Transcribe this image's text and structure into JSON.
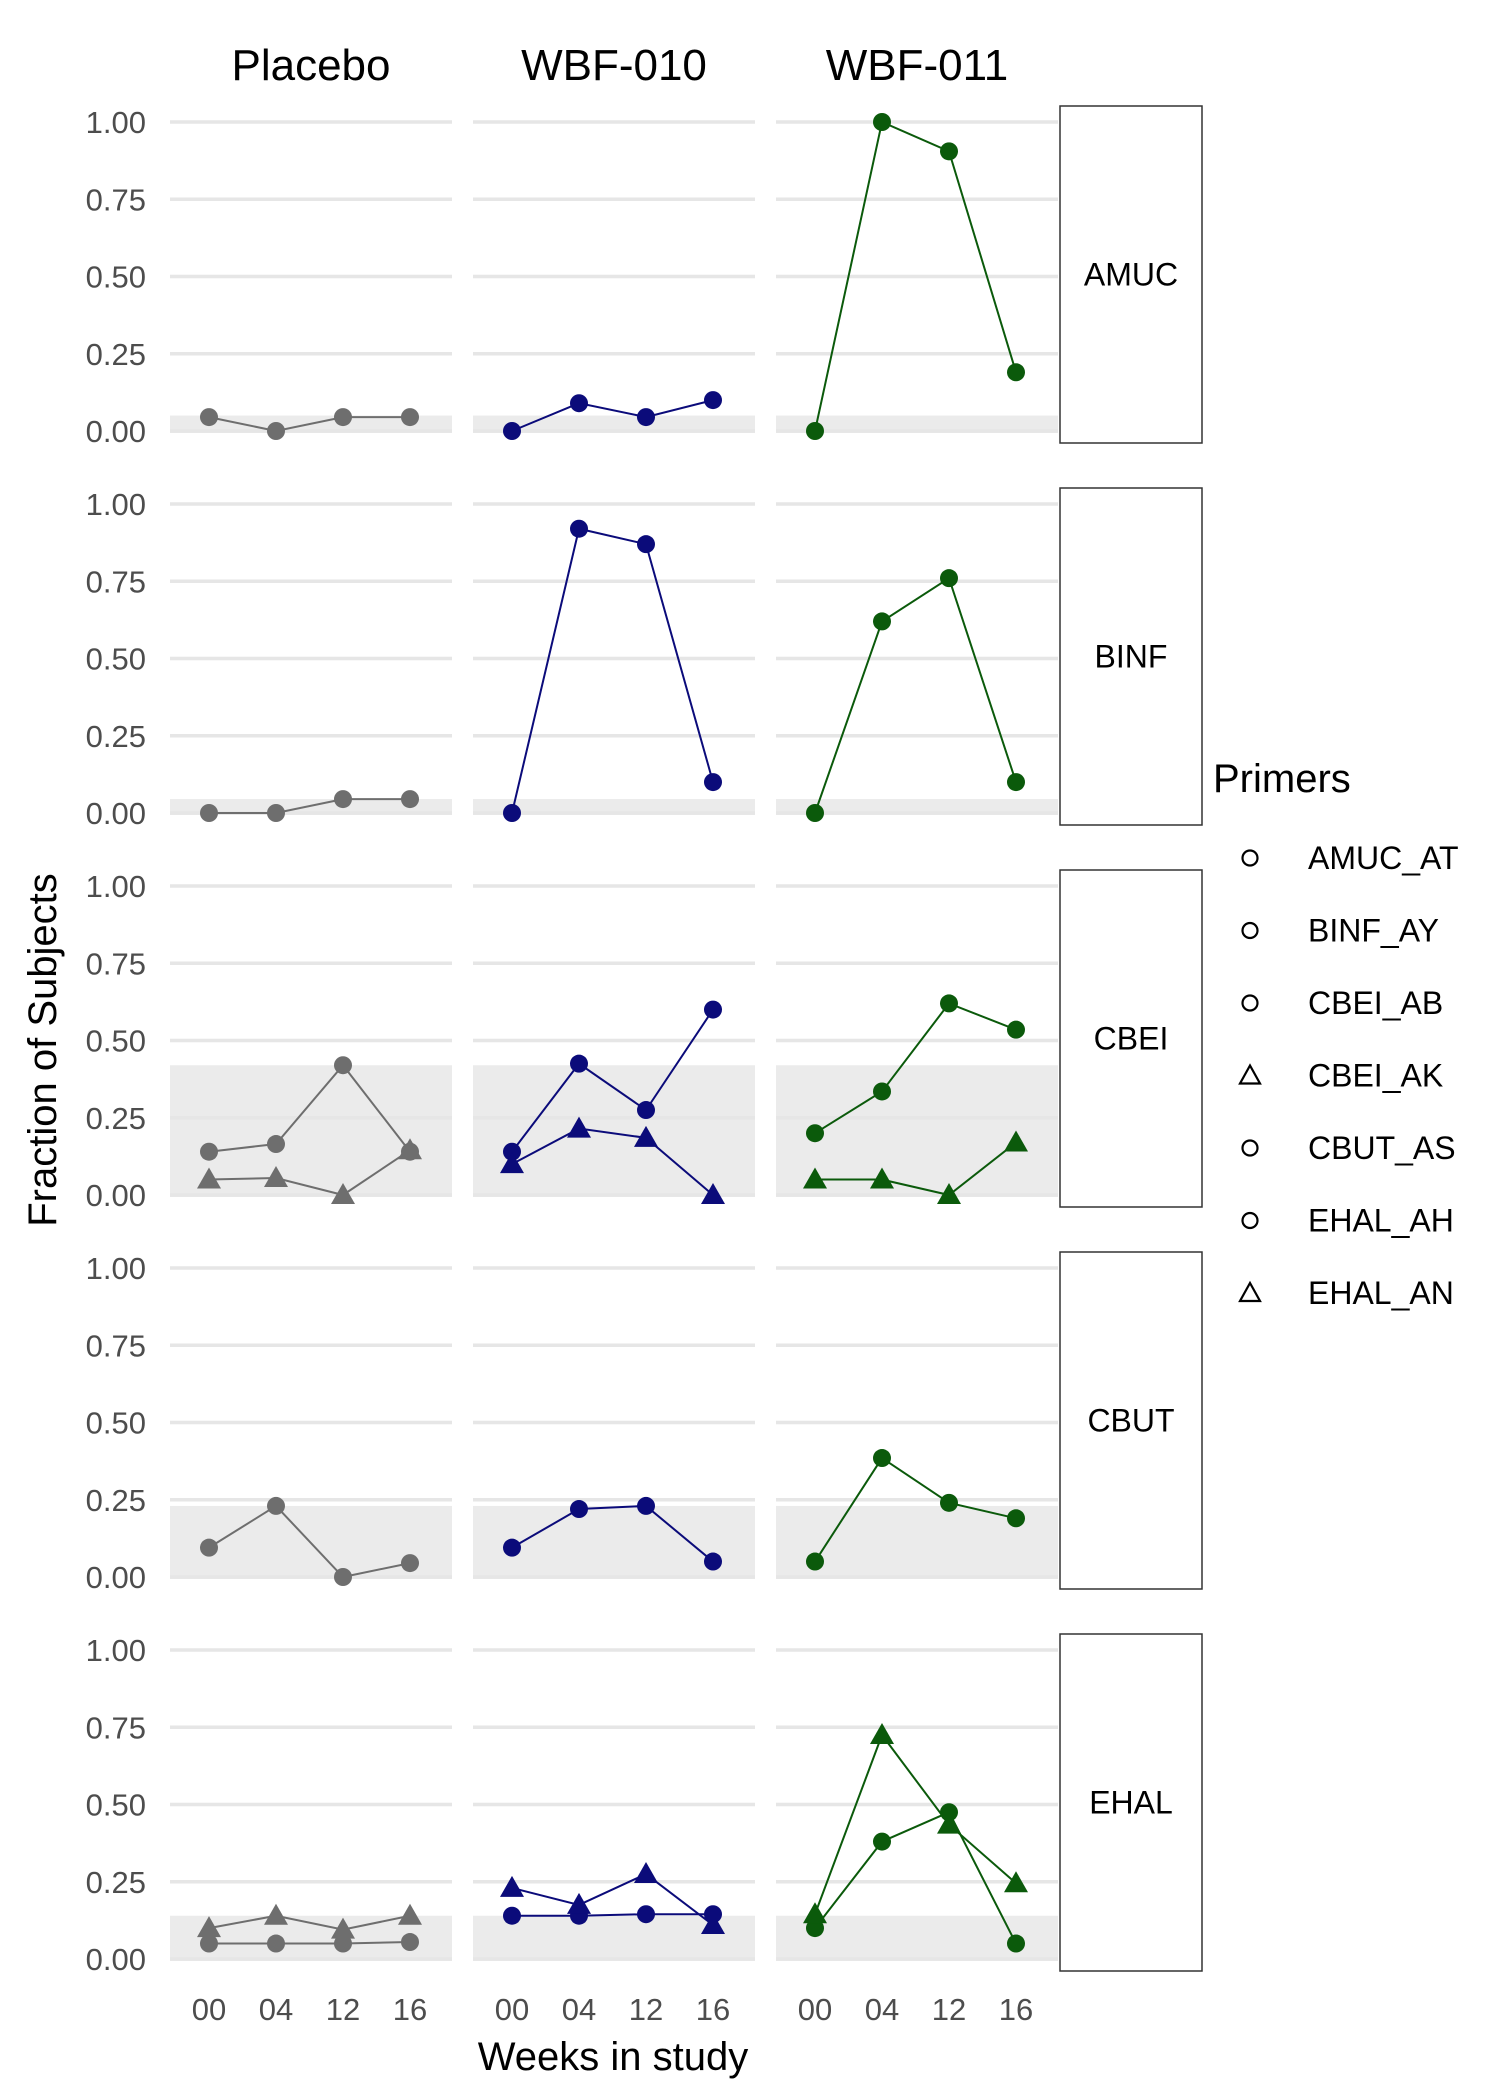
{
  "chart_data": {
    "type": "line",
    "xlabel": "Weeks in study",
    "ylabel": "Fraction of Subjects",
    "x_ticks": [
      "00",
      "04",
      "12",
      "16"
    ],
    "y_ticks": [
      "0.00",
      "0.25",
      "0.50",
      "0.75",
      "1.00"
    ],
    "ylim": [
      0,
      1
    ],
    "columns": [
      "Placebo",
      "WBF-010",
      "WBF-011"
    ],
    "rows": [
      "AMUC",
      "BINF",
      "CBEI",
      "CBUT",
      "EHAL"
    ],
    "column_colors": {
      "Placebo": "#6e6e6e",
      "WBF-010": "#0b0b7a",
      "WBF-011": "#0b5a0b"
    },
    "background_band_color": "#ebebeb",
    "legend": {
      "title": "Primers",
      "position": "right",
      "items": [
        {
          "label": "AMUC_AT",
          "shape": "circle"
        },
        {
          "label": "BINF_AY",
          "shape": "circle"
        },
        {
          "label": "CBEI_AB",
          "shape": "circle"
        },
        {
          "label": "CBEI_AK",
          "shape": "triangle"
        },
        {
          "label": "CBUT_AS",
          "shape": "circle"
        },
        {
          "label": "EHAL_AH",
          "shape": "circle"
        },
        {
          "label": "EHAL_AN",
          "shape": "triangle"
        }
      ]
    },
    "bands": {
      "AMUC": {
        "Placebo": 0.05,
        "WBF-010": 0.05,
        "WBF-011": 0.05
      },
      "BINF": {
        "Placebo": 0.045,
        "WBF-010": 0.045,
        "WBF-011": 0.045
      },
      "CBEI": {
        "Placebo": 0.42,
        "WBF-010": 0.42,
        "WBF-011": 0.42
      },
      "CBUT": {
        "Placebo": 0.23,
        "WBF-010": 0.23,
        "WBF-011": 0.23
      },
      "EHAL": {
        "Placebo": 0.14,
        "WBF-010": 0.14,
        "WBF-011": 0.14
      }
    },
    "series": {
      "AMUC": {
        "Placebo": [
          {
            "primer": "AMUC_AT",
            "shape": "circle",
            "values": [
              0.045,
              0.0,
              0.045,
              0.045
            ]
          }
        ],
        "WBF-010": [
          {
            "primer": "AMUC_AT",
            "shape": "circle",
            "values": [
              0.0,
              0.09,
              0.045,
              0.1
            ]
          }
        ],
        "WBF-011": [
          {
            "primer": "AMUC_AT",
            "shape": "circle",
            "values": [
              0.0,
              1.0,
              0.905,
              0.19
            ]
          }
        ]
      },
      "BINF": {
        "Placebo": [
          {
            "primer": "BINF_AY",
            "shape": "circle",
            "values": [
              0.0,
              0.0,
              0.045,
              0.045
            ]
          }
        ],
        "WBF-010": [
          {
            "primer": "BINF_AY",
            "shape": "circle",
            "values": [
              0.0,
              0.92,
              0.87,
              0.1
            ]
          }
        ],
        "WBF-011": [
          {
            "primer": "BINF_AY",
            "shape": "circle",
            "values": [
              0.0,
              0.62,
              0.76,
              0.1
            ]
          }
        ]
      },
      "CBEI": {
        "Placebo": [
          {
            "primer": "CBEI_AB",
            "shape": "circle",
            "values": [
              0.14,
              0.165,
              0.42,
              0.14
            ]
          },
          {
            "primer": "CBEI_AK",
            "shape": "triangle",
            "values": [
              0.05,
              0.055,
              0.0,
              0.145
            ]
          }
        ],
        "WBF-010": [
          {
            "primer": "CBEI_AB",
            "shape": "circle",
            "values": [
              0.14,
              0.425,
              0.275,
              0.6
            ]
          },
          {
            "primer": "CBEI_AK",
            "shape": "triangle",
            "values": [
              0.1,
              0.215,
              0.185,
              0.0
            ]
          }
        ],
        "WBF-011": [
          {
            "primer": "CBEI_AB",
            "shape": "circle",
            "values": [
              0.2,
              0.335,
              0.62,
              0.535
            ]
          },
          {
            "primer": "CBEI_AK",
            "shape": "triangle",
            "values": [
              0.05,
              0.05,
              0.0,
              0.17
            ]
          }
        ]
      },
      "CBUT": {
        "Placebo": [
          {
            "primer": "CBUT_AS",
            "shape": "circle",
            "values": [
              0.095,
              0.23,
              0.0,
              0.045
            ]
          }
        ],
        "WBF-010": [
          {
            "primer": "CBUT_AS",
            "shape": "circle",
            "values": [
              0.095,
              0.22,
              0.23,
              0.05
            ]
          }
        ],
        "WBF-011": [
          {
            "primer": "CBUT_AS",
            "shape": "circle",
            "values": [
              0.05,
              0.385,
              0.24,
              0.19
            ]
          }
        ]
      },
      "EHAL": {
        "Placebo": [
          {
            "primer": "EHAL_AH",
            "shape": "circle",
            "values": [
              0.05,
              0.05,
              0.05,
              0.055
            ]
          },
          {
            "primer": "EHAL_AN",
            "shape": "triangle",
            "values": [
              0.1,
              0.14,
              0.095,
              0.14
            ]
          }
        ],
        "WBF-010": [
          {
            "primer": "EHAL_AH",
            "shape": "circle",
            "values": [
              0.14,
              0.14,
              0.145,
              0.145
            ]
          },
          {
            "primer": "EHAL_AN",
            "shape": "triangle",
            "values": [
              0.23,
              0.175,
              0.275,
              0.11
            ]
          }
        ],
        "WBF-011": [
          {
            "primer": "EHAL_AH",
            "shape": "circle",
            "values": [
              0.1,
              0.38,
              0.475,
              0.05
            ]
          },
          {
            "primer": "EHAL_AN",
            "shape": "triangle",
            "values": [
              0.145,
              0.725,
              0.435,
              0.245
            ]
          }
        ]
      }
    }
  }
}
